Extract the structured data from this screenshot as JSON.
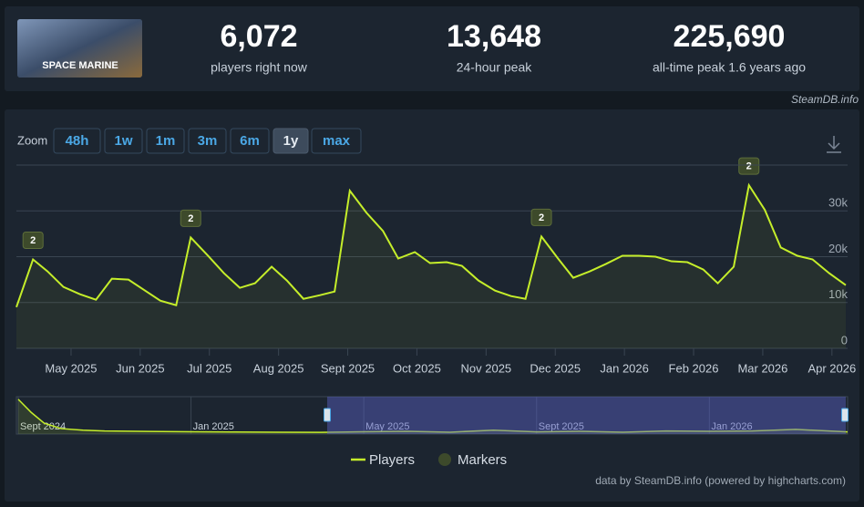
{
  "header": {
    "logo_text": "SPACE MARINE",
    "stats": [
      {
        "value": "6,072",
        "label": "players right now"
      },
      {
        "value": "13,648",
        "label": "24-hour peak"
      },
      {
        "value": "225,690",
        "label": "all-time peak 1.6 years ago"
      }
    ],
    "source": "SteamDB.info"
  },
  "zoom": {
    "label": "Zoom",
    "buttons": [
      "48h",
      "1w",
      "1m",
      "3m",
      "6m",
      "1y",
      "max"
    ],
    "selected_index": 5
  },
  "chart_data": {
    "type": "line",
    "x": [
      -0.79,
      -0.55,
      -0.34,
      -0.11,
      0.13,
      0.36,
      0.59,
      0.83,
      1.05,
      1.29,
      1.52,
      1.73,
      1.98,
      2.21,
      2.44,
      2.66,
      2.9,
      3.12,
      3.36,
      3.6,
      3.81,
      4.03,
      4.27,
      4.51,
      4.73,
      4.97,
      5.19,
      5.43,
      5.65,
      5.89,
      6.13,
      6.36,
      6.57,
      6.8,
      7.04,
      7.26,
      7.5,
      7.73,
      7.97,
      8.21,
      8.45,
      8.68,
      8.91,
      9.14,
      9.35,
      9.58,
      9.8,
      10.03,
      10.26,
      10.5,
      10.72,
      10.96,
      11.2
    ],
    "series": [
      {
        "name": "Players",
        "color": "#c5ee2a",
        "values": [
          9000,
          19400,
          16800,
          13400,
          11800,
          10600,
          15200,
          15000,
          12800,
          10400,
          9400,
          24200,
          20200,
          16400,
          13200,
          14200,
          17800,
          14800,
          10800,
          11600,
          12400,
          34400,
          29600,
          25600,
          19600,
          21000,
          18600,
          18800,
          18000,
          14800,
          12600,
          11400,
          10800,
          24400,
          19600,
          15400,
          16800,
          18400,
          20200,
          20200,
          20000,
          19000,
          18800,
          17200,
          14200,
          17800,
          35600,
          30200,
          22000,
          20200,
          19400,
          16400,
          13800
        ]
      }
    ],
    "xlim": [
      -0.79,
      11.2
    ],
    "xticks": [
      {
        "value": 0,
        "label": "May 2025"
      },
      {
        "value": 1,
        "label": "Jun 2025"
      },
      {
        "value": 2,
        "label": "Jul 2025"
      },
      {
        "value": 3,
        "label": "Aug 2025"
      },
      {
        "value": 4,
        "label": "Sept 2025"
      },
      {
        "value": 5,
        "label": "Oct 2025"
      },
      {
        "value": 6,
        "label": "Nov 2025"
      },
      {
        "value": 7,
        "label": "Dec 2025"
      },
      {
        "value": 8,
        "label": "Jan 2026"
      },
      {
        "value": 9,
        "label": "Feb 2026"
      },
      {
        "value": 10,
        "label": "Mar 2026"
      },
      {
        "value": 11,
        "label": "Apr 2026"
      }
    ],
    "ylim": [
      0,
      40000
    ],
    "yticks": [
      0,
      {
        "value": 10000,
        "label": "10k"
      },
      {
        "value": 20000,
        "label": "20k"
      },
      {
        "value": 30000,
        "label": "30k"
      }
    ],
    "grid": true,
    "markers": {
      "name": "Markers",
      "color": "#3d4a2b",
      "points": [
        {
          "x": -0.55,
          "label": "2"
        },
        {
          "x": 1.73,
          "label": "2"
        },
        {
          "x": 6.8,
          "label": "2"
        },
        {
          "x": 9.8,
          "label": "2"
        }
      ]
    },
    "navigator": {
      "x": [
        0,
        0.3,
        0.6,
        1,
        1.5,
        2,
        3,
        4,
        5,
        6,
        7,
        8,
        9,
        10,
        11,
        12,
        13,
        14,
        15,
        16,
        17,
        18,
        19.2
      ],
      "values": [
        225000,
        140000,
        70000,
        35000,
        25000,
        20000,
        17000,
        15000,
        13000,
        12000,
        11000,
        15000,
        18000,
        12000,
        25000,
        14000,
        18000,
        12000,
        20000,
        18000,
        20000,
        30000,
        14000
      ],
      "xlim": [
        0,
        19.2
      ],
      "ylim": [
        0,
        230000
      ],
      "xticks": [
        {
          "value": 0,
          "label": "Sept 2024"
        },
        {
          "value": 4,
          "label": "Jan 2025"
        },
        {
          "value": 8,
          "label": "May 2025"
        },
        {
          "value": 12,
          "label": "Sept 2025"
        },
        {
          "value": 16,
          "label": "Jan 2026"
        }
      ]
    },
    "credit": "data by SteamDB.info (powered by highcharts.com)"
  }
}
